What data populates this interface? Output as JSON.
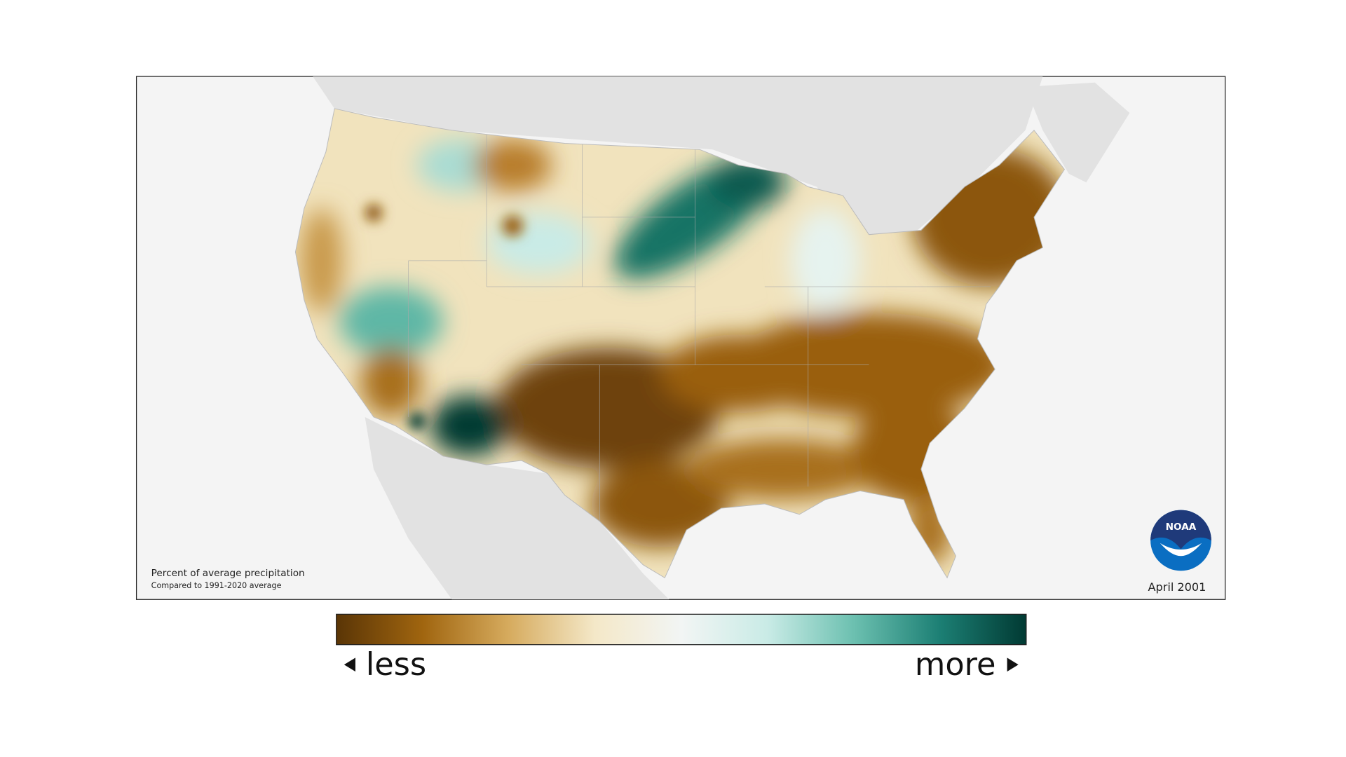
{
  "map": {
    "title": "Percent of average precipitation",
    "subtitle": "Compared to 1991-2020 average",
    "date": "April 2001",
    "logo": "NOAA"
  },
  "legend": {
    "low_label": "less",
    "high_label": "more",
    "colors": [
      "#5a3506",
      "#a0650f",
      "#d6ab5e",
      "#f4e8c8",
      "#f2f5f4",
      "#c9ebe6",
      "#6cc0b0",
      "#1c7f74",
      "#013a33"
    ]
  }
}
